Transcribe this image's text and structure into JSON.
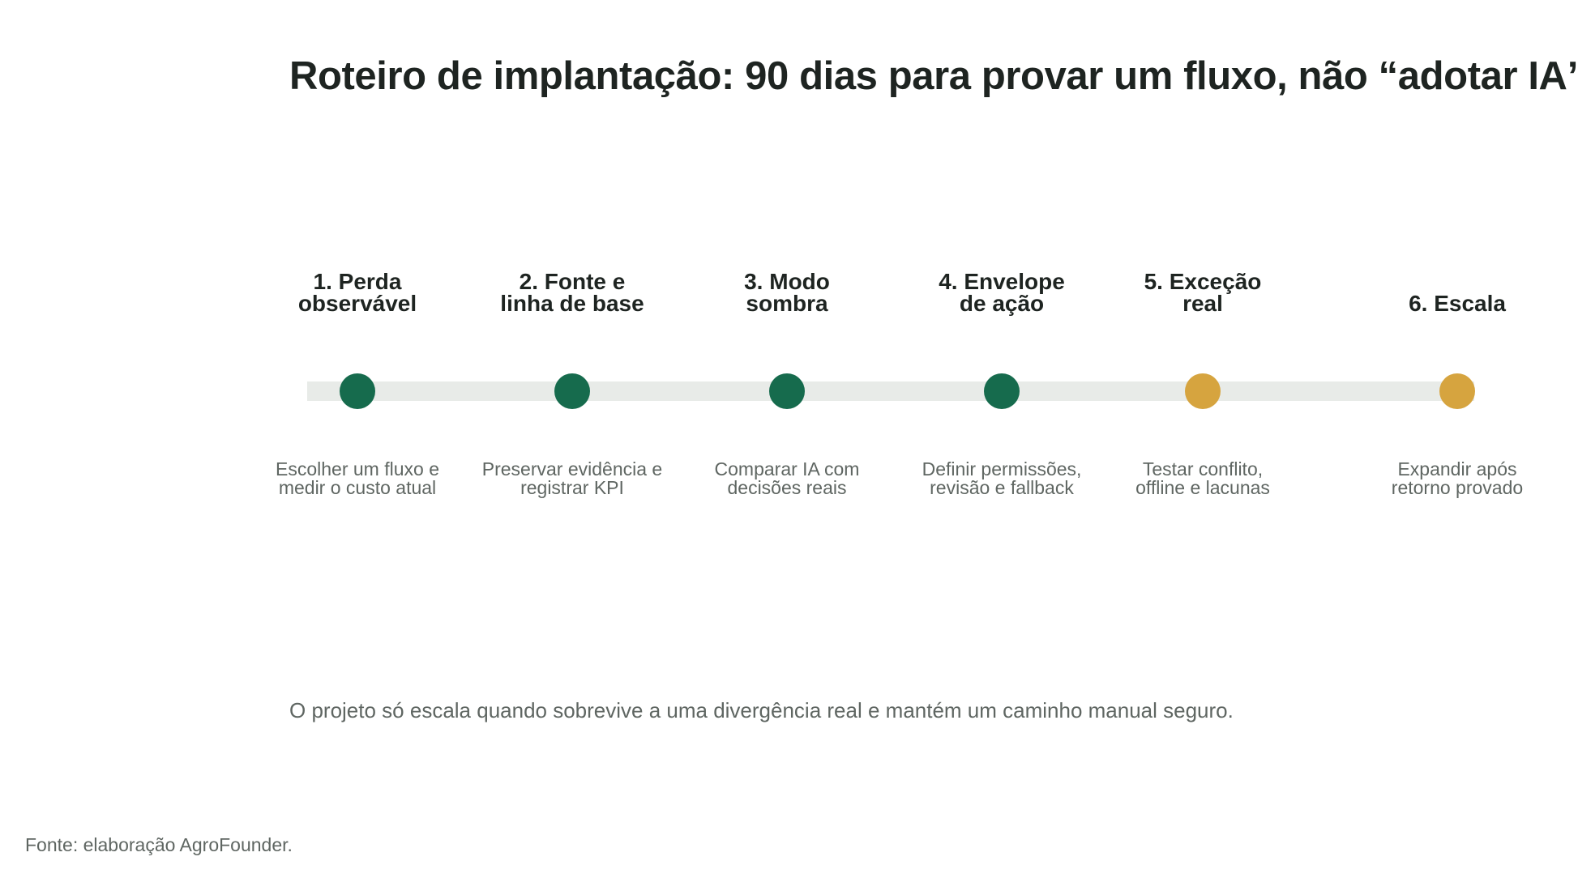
{
  "title": "Roteiro de implantação: 90 dias para provar um fluxo, não “adotar IA”",
  "colors": {
    "done": "#166b4d",
    "pending": "#d6a43f",
    "track": "#e8ebe8"
  },
  "steps": [
    {
      "title": "1. Perda\nobservável",
      "description": "Escolher um fluxo e\nmedir o custo atual",
      "status": "done"
    },
    {
      "title": "2. Fonte e\nlinha de base",
      "description": "Preservar evidência e\nregistrar KPI",
      "status": "done"
    },
    {
      "title": "3. Modo\nsombra",
      "description": "Comparar IA com\ndecisões reais",
      "status": "done"
    },
    {
      "title": "4. Envelope\nde ação",
      "description": "Definir permissões,\nrevisão e fallback",
      "status": "done"
    },
    {
      "title": "5. Exceção\nreal",
      "description": "Testar conflito,\noffline e lacunas",
      "status": "pending"
    },
    {
      "title": "6. Escala",
      "description": "Expandir após\nretorno provado",
      "status": "pending"
    }
  ],
  "note": "O projeto só escala quando sobrevive a uma divergência real e mantém um caminho manual seguro.",
  "source": "Fonte: elaboração AgroFounder."
}
